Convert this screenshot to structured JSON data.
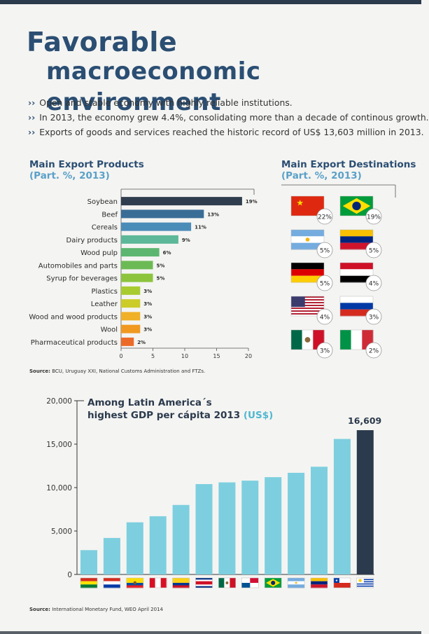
{
  "header": {
    "title_line1": "Favorable",
    "title_line2": "macroeconomic environment"
  },
  "bullets": [
    "Open and stable economy with highly reliable institutions.",
    "In 2013, the economy grew 4.4%, consolidating more than a decade of continous growth.",
    "Exports of goods and services reached the historic record of US$ 13,603 million in 2013."
  ],
  "exports": {
    "title": "Main Export Products",
    "subtitle": "(Part. %, 2013)",
    "source_label": "Source:",
    "source_text": "BCU, Uruguay XXI, National Customs Administration and FTZs."
  },
  "destinations": {
    "title": "Main Export Destinations",
    "subtitle": "(Part. %, 2013)"
  },
  "gdp": {
    "title_line1": "Among Latin America´s",
    "title_line2": "highest GDP per cápita 2013",
    "title_unit": "(US$)",
    "highlight_label": "16,609",
    "source_label": "Source:",
    "source_text": "International Monetary Fund, WEO April 2014"
  },
  "colors": {
    "title_blue": "#2b4e73",
    "subtitle_blue": "#5aa0c8",
    "gdp_bar": "#7dcfdf",
    "gdp_highlight": "#2b3a4c"
  },
  "chart_data": [
    {
      "type": "bar",
      "orientation": "horizontal",
      "categories": [
        "Soybean",
        "Beef",
        "Cereals",
        "Dairy products",
        "Wood pulp",
        "Automobiles and parts",
        "Syrup for beverages",
        "Plastics",
        "Leather",
        "Wood and wood products",
        "Wool",
        "Pharmaceutical products"
      ],
      "values": [
        19,
        13,
        11,
        9,
        6,
        5,
        5,
        3,
        3,
        3,
        3,
        2
      ],
      "data_labels": [
        "19%",
        "13%",
        "11%",
        "9%",
        "6%",
        "5%",
        "5%",
        "3%",
        "3%",
        "3%",
        "3%",
        "2%"
      ],
      "colors": [
        "#2f3d4e",
        "#3a6d96",
        "#4a8cb8",
        "#5cb898",
        "#5cb670",
        "#6cba55",
        "#8cc43c",
        "#a8cc30",
        "#cccc28",
        "#f0b028",
        "#f09820",
        "#ec6a28"
      ],
      "xlim": [
        0,
        20
      ],
      "xticks": [
        0,
        5,
        10,
        15,
        20
      ]
    },
    {
      "type": "table",
      "flags": [
        "china-flag",
        "brazil-flag",
        "argentina-flag",
        "venezuela-flag",
        "germany-flag",
        "egypt-flag",
        "usa-flag",
        "russia-flag",
        "mexico-flag",
        "italy-flag"
      ],
      "values": [
        "22%",
        "19%",
        "5%",
        "5%",
        "5%",
        "4%",
        "4%",
        "3%",
        "3%",
        "2%"
      ]
    },
    {
      "type": "bar",
      "categories": [
        "bolivia-flag",
        "paraguay-flag",
        "ecuador-flag",
        "peru-flag",
        "colombia-flag",
        "costa-rica-flag",
        "mexico-flag",
        "panama-flag",
        "brazil-flag",
        "argentina-flag",
        "venezuela-flag",
        "chile-flag",
        "uruguay-flag"
      ],
      "values": [
        2800,
        4200,
        6000,
        6700,
        8000,
        10400,
        10600,
        10800,
        11200,
        11700,
        12400,
        15600,
        16609
      ],
      "ylim": [
        0,
        20000
      ],
      "yticks": [
        "0",
        "5,000",
        "10,000",
        "15,000",
        "20,000"
      ],
      "highlight": "16,609"
    }
  ]
}
